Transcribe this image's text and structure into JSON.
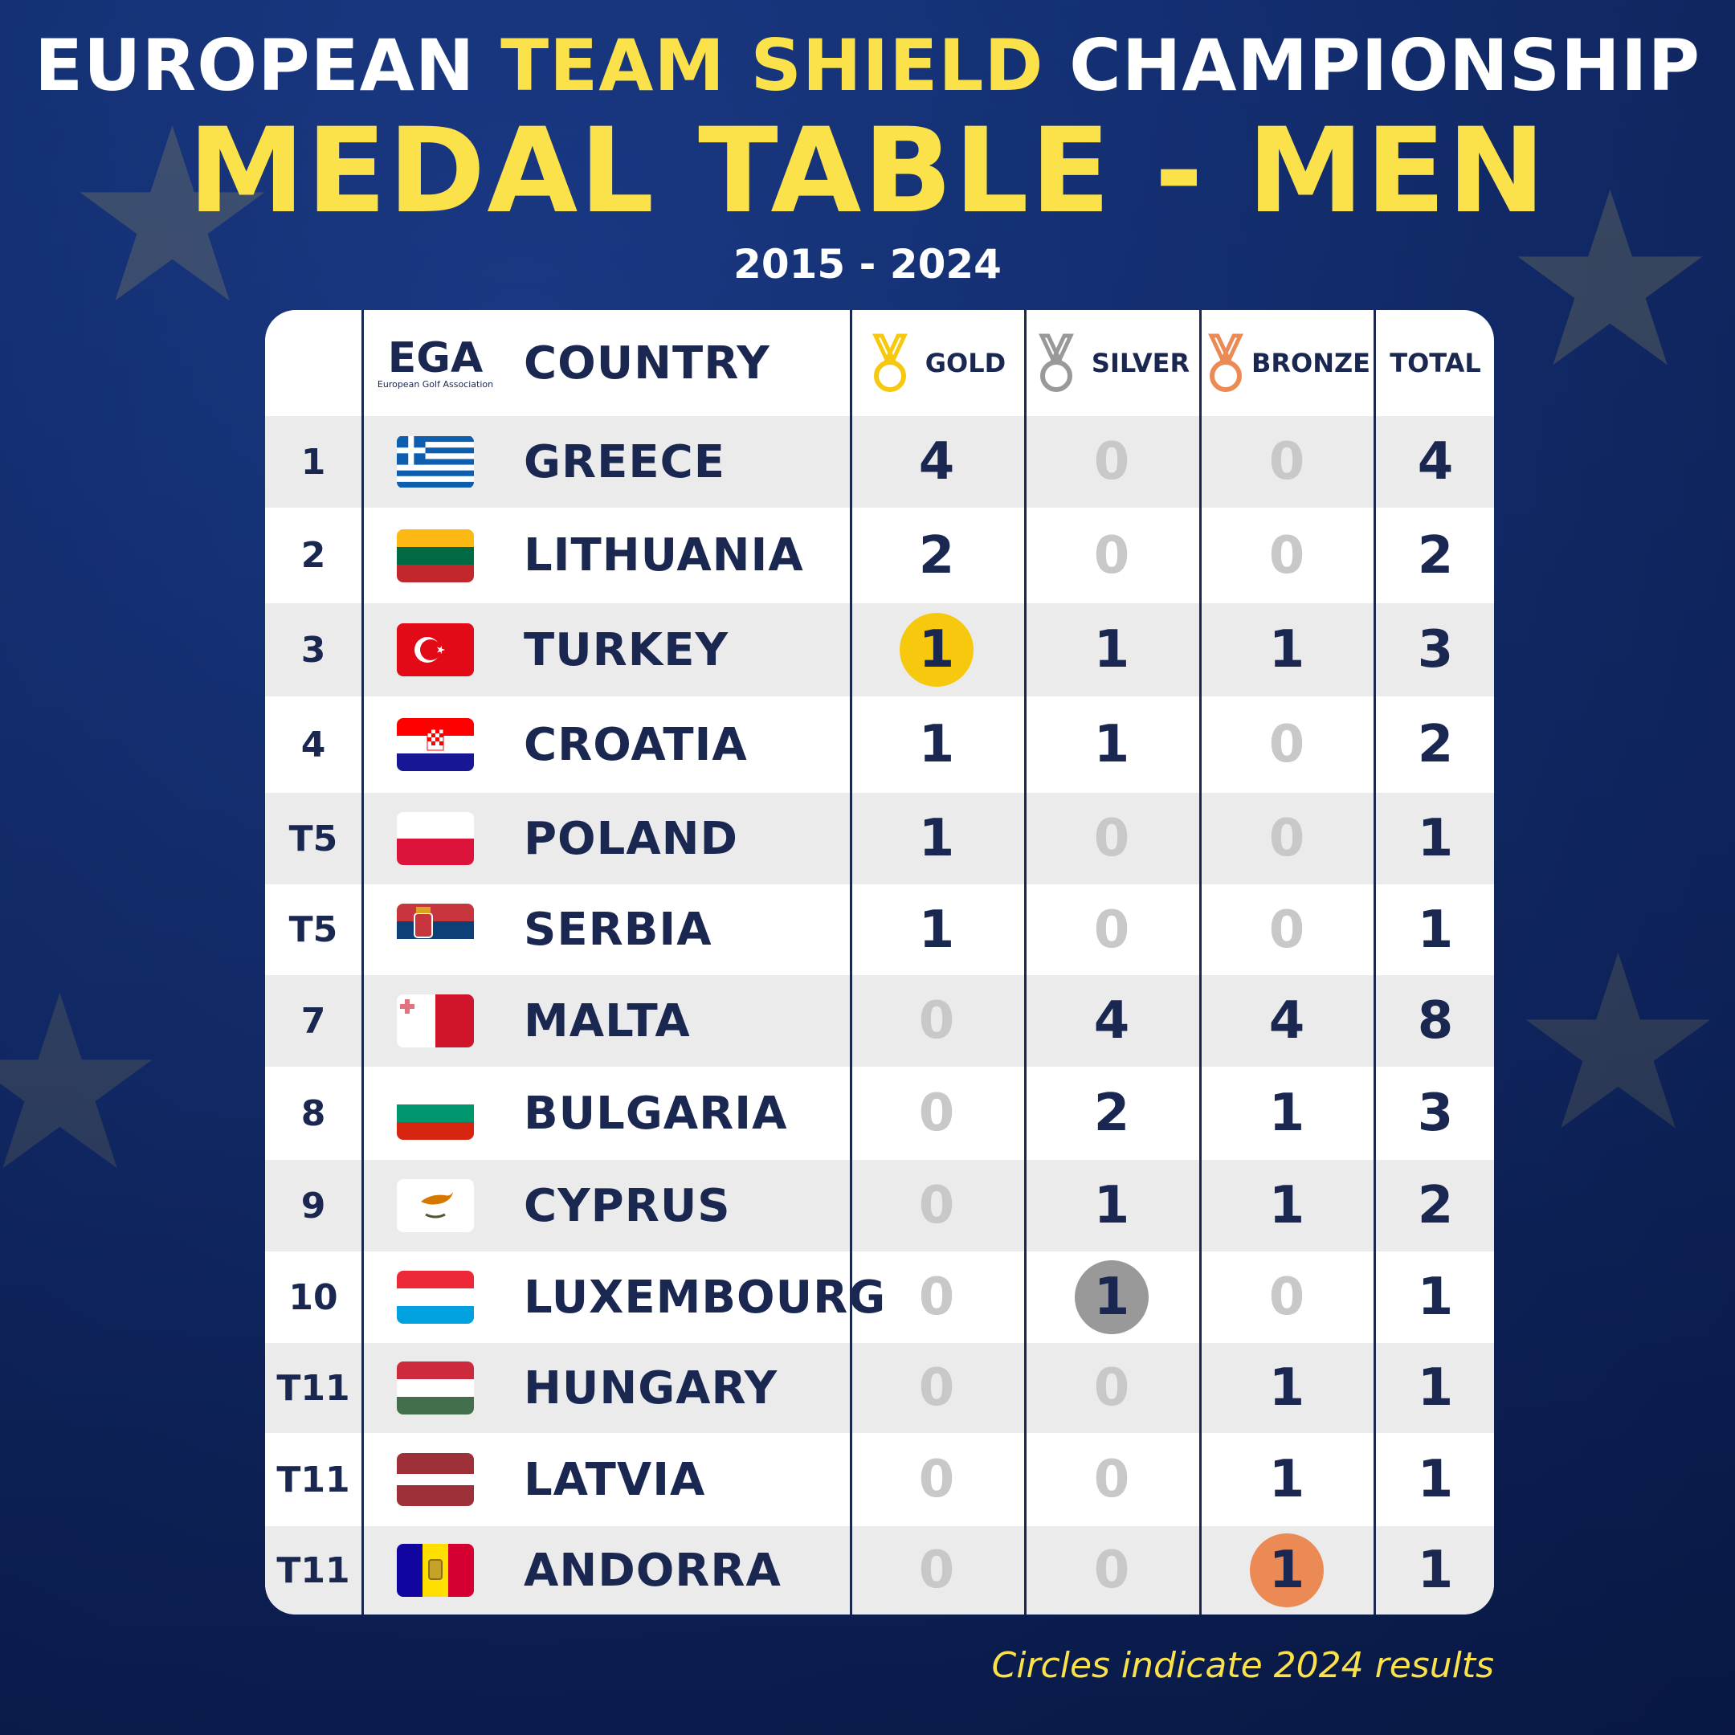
{
  "header": {
    "line1_part1": "EUROPEAN ",
    "line1_highlight": "TEAM SHIELD",
    "line1_part2": " CHAMPIONSHIP",
    "title": "MEDAL TABLE - MEN",
    "years": "2015 - 2024"
  },
  "table": {
    "logo_text": "EGA",
    "logo_subtext": "European Golf Association",
    "columns": {
      "country": "COUNTRY",
      "gold": "GOLD",
      "silver": "SILVER",
      "bronze": "BRONZE",
      "total": "TOTAL"
    },
    "rows": [
      {
        "rank": "1",
        "flag": "greece-flag",
        "country": "GREECE",
        "gold": "4",
        "silver": "0",
        "bronze": "0",
        "total": "4",
        "circle": ""
      },
      {
        "rank": "2",
        "flag": "lithuania-flag",
        "country": "LITHUANIA",
        "gold": "2",
        "silver": "0",
        "bronze": "0",
        "total": "2",
        "circle": ""
      },
      {
        "rank": "3",
        "flag": "turkey-flag",
        "country": "TURKEY",
        "gold": "1",
        "silver": "1",
        "bronze": "1",
        "total": "3",
        "circle": "gold"
      },
      {
        "rank": "4",
        "flag": "croatia-flag",
        "country": "CROATIA",
        "gold": "1",
        "silver": "1",
        "bronze": "0",
        "total": "2",
        "circle": ""
      },
      {
        "rank": "T5",
        "flag": "poland-flag",
        "country": "POLAND",
        "gold": "1",
        "silver": "0",
        "bronze": "0",
        "total": "1",
        "circle": ""
      },
      {
        "rank": "T5",
        "flag": "serbia-flag",
        "country": "SERBIA",
        "gold": "1",
        "silver": "0",
        "bronze": "0",
        "total": "1",
        "circle": ""
      },
      {
        "rank": "7",
        "flag": "malta-flag",
        "country": "MALTA",
        "gold": "0",
        "silver": "4",
        "bronze": "4",
        "total": "8",
        "circle": ""
      },
      {
        "rank": "8",
        "flag": "bulgaria-flag",
        "country": "BULGARIA",
        "gold": "0",
        "silver": "2",
        "bronze": "1",
        "total": "3",
        "circle": ""
      },
      {
        "rank": "9",
        "flag": "cyprus-flag",
        "country": "CYPRUS",
        "gold": "0",
        "silver": "1",
        "bronze": "1",
        "total": "2",
        "circle": ""
      },
      {
        "rank": "10",
        "flag": "luxembourg-flag",
        "country": "LUXEMBOURG",
        "gold": "0",
        "silver": "1",
        "bronze": "0",
        "total": "1",
        "circle": "silver"
      },
      {
        "rank": "T11",
        "flag": "hungary-flag",
        "country": "HUNGARY",
        "gold": "0",
        "silver": "0",
        "bronze": "1",
        "total": "1",
        "circle": ""
      },
      {
        "rank": "T11",
        "flag": "latvia-flag",
        "country": "LATVIA",
        "gold": "0",
        "silver": "0",
        "bronze": "1",
        "total": "1",
        "circle": ""
      },
      {
        "rank": "T11",
        "flag": "andorra-flag",
        "country": "ANDORRA",
        "gold": "0",
        "silver": "0",
        "bronze": "1",
        "total": "1",
        "circle": "bronze"
      }
    ]
  },
  "footer": "Circles indicate 2024 results",
  "colors": {
    "navy": "#1a2750",
    "yellow": "#fbe14a",
    "gold": "#f6c90e",
    "silver": "#999999",
    "bronze": "#eb8a54"
  }
}
